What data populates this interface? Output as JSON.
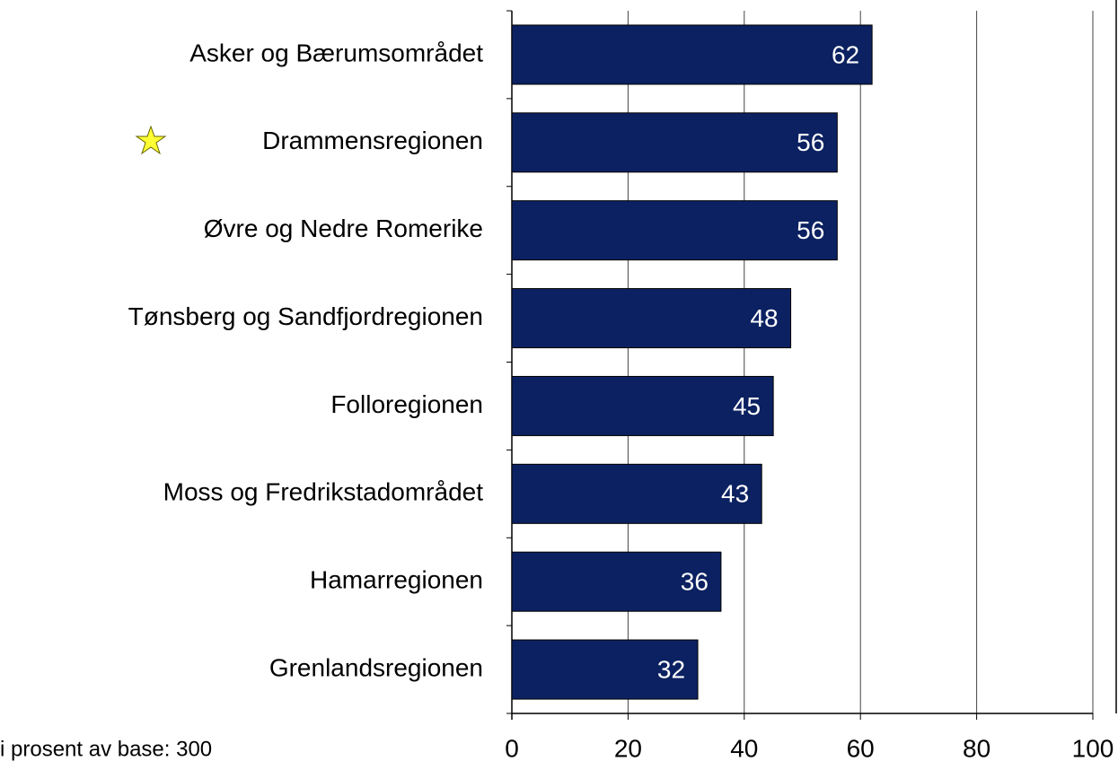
{
  "chart_data": {
    "type": "bar",
    "orientation": "horizontal",
    "categories": [
      "Asker og Bærumsområdet",
      "Drammensregionen",
      "Øvre og Nedre Romerike",
      "Tønsberg og Sandfjordregionen",
      "Folloregionen",
      "Moss og Fredrikstadområdet",
      "Hamarregionen",
      "Grenlandsregionen"
    ],
    "values": [
      62,
      56,
      56,
      48,
      45,
      43,
      36,
      32
    ],
    "color": "#0b2161",
    "xlim": [
      0,
      100
    ],
    "xticks": [
      0,
      20,
      40,
      60,
      80,
      100
    ],
    "grid": true,
    "note": "i prosent av base: 300"
  }
}
